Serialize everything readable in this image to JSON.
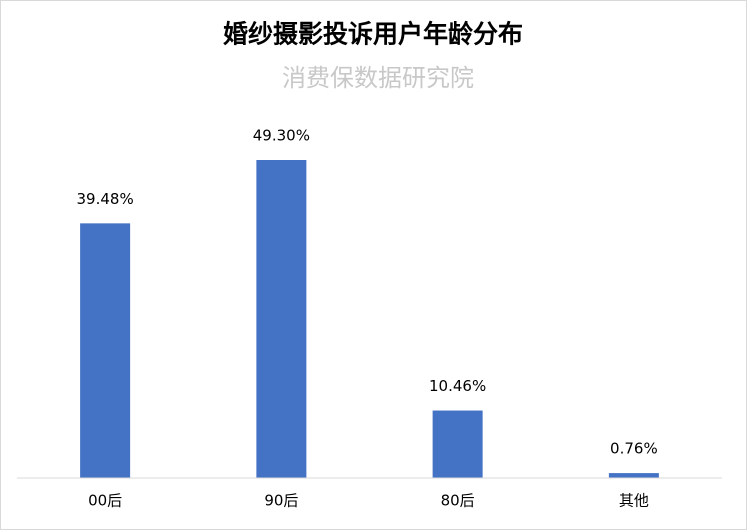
{
  "chart_data": {
    "type": "bar",
    "title": "婚纱摄影投诉用户年龄分布",
    "subtitle": "消费保数据研究院",
    "categories": [
      "00后",
      "90后",
      "80后",
      "其他"
    ],
    "values": [
      39.48,
      49.3,
      10.46,
      0.76
    ],
    "value_labels": [
      "39.48%",
      "49.30%",
      "10.46%",
      "0.76%"
    ],
    "color": "#4472c4",
    "ylim": [
      0,
      60
    ]
  }
}
